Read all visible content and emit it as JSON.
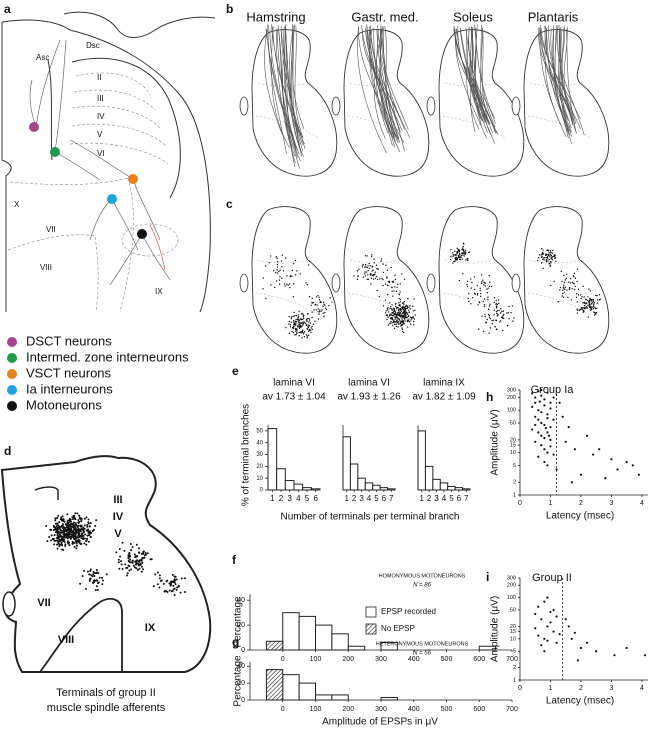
{
  "panel_labels": [
    "a",
    "b",
    "c",
    "d",
    "e",
    "f",
    "g",
    "h",
    "i"
  ],
  "panel_a": {
    "tracts": [
      "Dsc",
      "Asc"
    ],
    "laminae": [
      "II",
      "III",
      "IV",
      "V",
      "VI",
      "VII",
      "VIII",
      "IX",
      "X"
    ],
    "legend": [
      {
        "name": "DSCT neurons",
        "color": "#a4458e"
      },
      {
        "name": "Intermed. zone interneurons",
        "color": "#1f9a47"
      },
      {
        "name": "VSCT neurons",
        "color": "#e6831f"
      },
      {
        "name": "Ia interneurons",
        "color": "#20a3dc"
      },
      {
        "name": "Motoneurons",
        "color": "#111111"
      }
    ]
  },
  "panel_b": {
    "muscles": [
      "Hamstring",
      "Gastr. med.",
      "Soleus",
      "Plantaris"
    ]
  },
  "panel_d": {
    "laminae": [
      "III",
      "IV",
      "V",
      "VII",
      "VIII",
      "IX"
    ],
    "caption": [
      "Terminals of group II",
      "muscle spindle afferents"
    ]
  },
  "chart_data": [
    {
      "type": "histogram",
      "title": "lamina VI",
      "subtitle": "av 1.73 ± 1.04",
      "y_label": "% of terminal branches",
      "x_label": "Number of terminals per terminal branch",
      "xlim": [
        0.5,
        6.5
      ],
      "ylim": [
        0,
        55
      ],
      "xticks": [
        1,
        2,
        3,
        4,
        5,
        6
      ],
      "yticks": [
        0,
        10,
        20,
        30,
        40,
        50
      ],
      "series": [
        {
          "pattern": "none",
          "bins": [
            0.5,
            1.5,
            2.5,
            3.5,
            4.5,
            5.5,
            6.5
          ],
          "values": [
            52,
            18,
            8,
            5,
            2,
            1
          ]
        }
      ]
    },
    {
      "type": "histogram",
      "title": "lamina VI",
      "subtitle": "av 1.93 ± 1.26",
      "xlim": [
        0.5,
        7.5
      ],
      "ylim": [
        0,
        55
      ],
      "xticks": [
        1,
        2,
        3,
        4,
        5,
        6,
        7
      ],
      "series": [
        {
          "pattern": "none",
          "bins": [
            0.5,
            1.5,
            2.5,
            3.5,
            4.5,
            5.5,
            6.5,
            7.5
          ],
          "values": [
            45,
            22,
            10,
            6,
            4,
            2,
            1
          ]
        }
      ]
    },
    {
      "type": "histogram",
      "title": "lamina IX",
      "subtitle": "av 1.82 ± 1.09",
      "xlim": [
        0.5,
        7.5
      ],
      "ylim": [
        0,
        55
      ],
      "xticks": [
        1,
        2,
        3,
        4,
        5,
        6,
        7
      ],
      "series": [
        {
          "pattern": "none",
          "bins": [
            0.5,
            1.5,
            2.5,
            3.5,
            4.5,
            5.5,
            6.5,
            7.5
          ],
          "values": [
            50,
            20,
            9,
            6,
            3,
            2,
            1
          ]
        }
      ]
    },
    {
      "type": "histogram",
      "y_label": "Percentage",
      "annotation": "HOMONYMOUS MOTONEURONS",
      "n_label": "N = 86",
      "legend": "center",
      "xlim": [
        -100,
        700
      ],
      "ylim": [
        0,
        45
      ],
      "xticks": [
        0,
        100,
        200,
        300,
        400,
        500,
        600,
        700
      ],
      "yticks": [
        0,
        20,
        40
      ],
      "series": [
        {
          "name": "EPSP recorded",
          "pattern": "none",
          "bins": [
            0,
            50,
            100,
            150,
            200,
            250,
            300,
            350,
            400,
            450,
            500,
            550,
            600,
            650
          ],
          "values": [
            30,
            27,
            20,
            13,
            3,
            0,
            6,
            0,
            0,
            0,
            0,
            0,
            3
          ]
        },
        {
          "name": "No EPSP",
          "pattern": "hatch",
          "bins": [
            -50,
            0
          ],
          "values": [
            7
          ]
        }
      ]
    },
    {
      "type": "histogram",
      "y_label": "Percentage",
      "x_label": "Amplitude of EPSPs in μV",
      "annotation": "HETERONYMOUS MOTONEURONS",
      "n_label": "N = 56",
      "xlim": [
        -100,
        700
      ],
      "ylim": [
        0,
        45
      ],
      "xticks": [
        0,
        100,
        200,
        300,
        400,
        500,
        600,
        700
      ],
      "yticks": [
        0,
        20,
        40
      ],
      "series": [
        {
          "pattern": "none",
          "bins": [
            0,
            50,
            100,
            150,
            200,
            250,
            300,
            350
          ],
          "values": [
            30,
            20,
            6,
            6,
            0,
            0,
            3
          ]
        },
        {
          "pattern": "hatch",
          "bins": [
            -50,
            0
          ],
          "values": [
            36
          ]
        }
      ]
    },
    {
      "type": "scatter",
      "title": "Group Ia",
      "x_label": "Latency (msec)",
      "y_label": "Amplitude (μV)",
      "log_y": true,
      "xlim": [
        0,
        4.2
      ],
      "ylim": [
        1,
        300
      ],
      "xticks": [
        0,
        1,
        2,
        3,
        4
      ],
      "yticks": [
        1,
        2,
        5,
        10,
        15,
        20,
        50,
        100,
        200,
        300
      ],
      "reference_x": 1.2,
      "color": "#111111",
      "x": [
        0.4,
        0.5,
        0.5,
        0.6,
        0.7,
        0.8,
        0.9,
        1.0,
        0.4,
        0.6,
        0.7,
        0.8,
        0.9,
        1.0,
        0.5,
        0.6,
        0.7,
        0.8,
        0.9,
        1.0,
        0.4,
        0.6,
        0.7,
        0.8,
        0.9,
        1.0,
        0.5,
        0.7,
        0.8,
        0.9,
        1.0,
        0.6,
        0.8,
        0.9,
        1.1,
        1.1,
        1.1,
        0.5,
        0.7,
        0.85,
        0.95,
        0.65,
        1.3,
        1.4,
        1.6,
        1.5,
        1.8,
        2.0,
        2.2,
        2.4,
        2.6,
        3.0,
        3.2,
        3.5,
        3.7,
        3.9,
        1.7,
        2.8,
        1.2
      ],
      "y": [
        250,
        200,
        150,
        280,
        220,
        180,
        260,
        150,
        120,
        100,
        90,
        130,
        80,
        110,
        70,
        60,
        50,
        45,
        65,
        40,
        35,
        30,
        25,
        22,
        30,
        20,
        18,
        15,
        12,
        10,
        14,
        8,
        6,
        5,
        9,
        200,
        60,
        45,
        300,
        38,
        25,
        160,
        150,
        70,
        40,
        18,
        12,
        3,
        25,
        9,
        12,
        7,
        4,
        6,
        5,
        3,
        2,
        2.5,
        4
      ]
    },
    {
      "type": "scatter",
      "title": "Group II",
      "x_label": "Latency (msec)",
      "y_label": "Amplitude (μV)",
      "log_y": true,
      "xlim": [
        0,
        4.2
      ],
      "ylim": [
        1,
        300
      ],
      "xticks": [
        0,
        1,
        2,
        3,
        4
      ],
      "yticks": [
        1,
        2,
        5,
        10,
        15,
        20,
        50,
        100,
        200,
        300
      ],
      "reference_x": 1.4,
      "color": "#111111",
      "x": [
        0.5,
        0.6,
        0.7,
        0.8,
        0.9,
        1.0,
        1.1,
        0.6,
        0.8,
        0.9,
        1.0,
        1.2,
        1.3,
        0.7,
        0.5,
        1.1,
        0.9,
        1.2,
        1.6,
        1.7,
        1.8,
        2.0,
        2.2,
        2.5,
        3.1,
        3.5,
        4.1,
        1.5,
        1.9,
        0.8
      ],
      "y": [
        40,
        60,
        30,
        80,
        20,
        45,
        15,
        12,
        10,
        9,
        25,
        35,
        13,
        7,
        18,
        50,
        100,
        8,
        20,
        10,
        14,
        6,
        8,
        5,
        4,
        6,
        4,
        30,
        3,
        5
      ]
    }
  ]
}
